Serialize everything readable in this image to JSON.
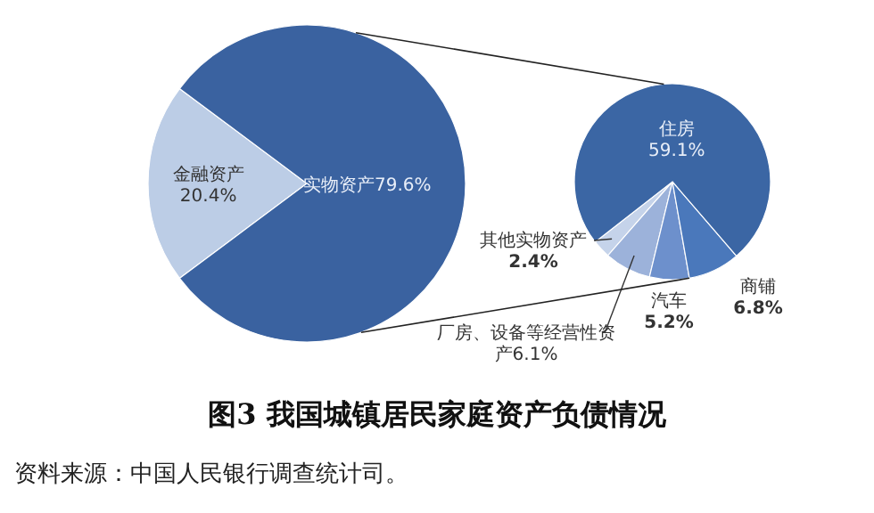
{
  "chart_data": [
    {
      "type": "pie",
      "title": "图3 我国城镇居民家庭资产负债情况",
      "annotations": [
        "资料来源：中国人民银行调查统计司。"
      ],
      "categories": [
        "金融资产",
        "实物资产"
      ],
      "values": [
        20.4,
        79.6
      ],
      "value_labels": [
        "20.4%",
        "79.6%"
      ],
      "colors": [
        "#bccde6",
        "#3a62a0"
      ]
    },
    {
      "type": "pie",
      "categories": [
        "其他实物资产",
        "厂房、设备等经营性资产",
        "汽车",
        "商铺",
        "住房"
      ],
      "values": [
        2.4,
        6.1,
        5.2,
        6.8,
        59.1
      ],
      "value_labels": [
        "2.4%",
        "6.1%",
        "5.2%",
        "6.8%",
        "59.1%"
      ],
      "colors": [
        "#c5d3ea",
        "#9cb2da",
        "#6d90cc",
        "#4a78bb",
        "#3b66a4"
      ]
    }
  ]
}
